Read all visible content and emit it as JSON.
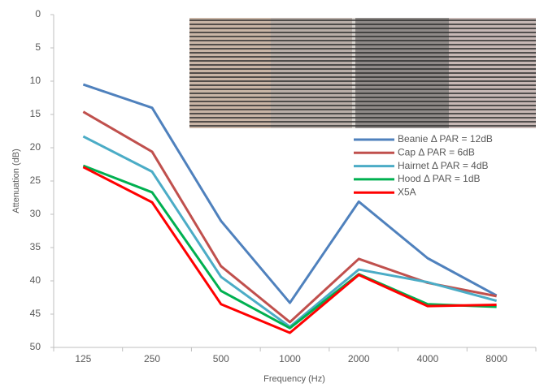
{
  "chart_data": {
    "type": "line",
    "x_label": "Frequency (Hz)",
    "y_label": "Attenuation (dB)",
    "categories": [
      "125",
      "250",
      "500",
      "1000",
      "2000",
      "4000",
      "8000"
    ],
    "series": [
      {
        "name": "Beanie  Δ PAR = 12dB",
        "color": "#4f81bd",
        "values": [
          10.5,
          14,
          31,
          43.3,
          28.1,
          36.6,
          42.2
        ]
      },
      {
        "name": "Cap  Δ PAR = 6dB",
        "color": "#c0504d",
        "values": [
          14.6,
          20.6,
          37.8,
          46.2,
          36.7,
          40.3,
          42.3
        ]
      },
      {
        "name": "Hairnet  Δ PAR = 4dB",
        "color": "#4bacc6",
        "values": [
          18.3,
          23.6,
          39.4,
          46.9,
          38.3,
          40.2,
          43
        ]
      },
      {
        "name": "Hood  Δ PAR = 1dB",
        "color": "#00b050",
        "values": [
          22.7,
          26.7,
          41.5,
          47.1,
          39,
          43.5,
          43.9
        ]
      },
      {
        "name": "X5A",
        "color": "#ff0000",
        "values": [
          22.9,
          28.2,
          43.5,
          47.8,
          39.1,
          43.8,
          43.6
        ]
      }
    ],
    "ylim": [
      0,
      50
    ],
    "yticks": [
      0,
      5,
      10,
      15,
      20,
      25,
      30,
      35,
      40,
      45,
      50
    ],
    "y_reversed": true,
    "grid": false,
    "legend": "right"
  }
}
